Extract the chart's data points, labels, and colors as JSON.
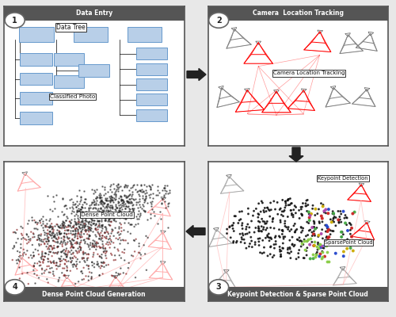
{
  "panel1": {
    "title": "Data Entry",
    "label": "1",
    "label_text": "Data Tree",
    "sub_label": "Classified Photo",
    "title_bg": "#555555",
    "title_pos": "top",
    "box_fill": "#b8cfe8",
    "box_edge": "#6699cc"
  },
  "panel2": {
    "title": "Camera  Location Tracking",
    "label": "2",
    "annotation": "Camera Location Tracking",
    "title_bg": "#555555",
    "title_pos": "top"
  },
  "panel3": {
    "title": "Keypoint Detection & Sparse Point Cloud",
    "label": "3",
    "ann1": "Keypoint Detection",
    "ann2": "SparsePoint Cloud",
    "title_bg": "#555555",
    "title_pos": "bottom"
  },
  "panel4": {
    "title": "Dense Point Cloud Generation",
    "label": "4",
    "annotation": "Dense Point Cloud",
    "title_bg": "#555555",
    "title_pos": "bottom"
  },
  "bg_color": "#e8e8e8",
  "panel_bg": "#ffffff",
  "border_color": "#333333"
}
